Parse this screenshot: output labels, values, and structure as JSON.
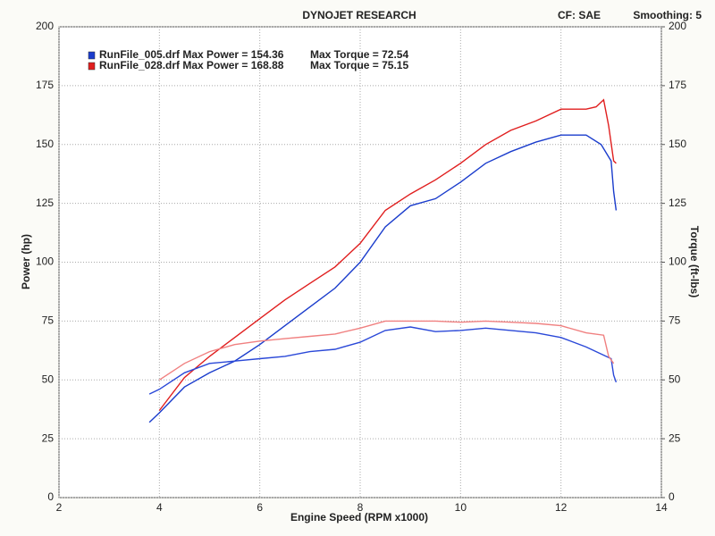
{
  "chart_data": {
    "type": "line",
    "title": "DYNOJET RESEARCH",
    "annotations": [
      "CF: SAE",
      "Smoothing: 5"
    ],
    "x_label": "Engine Speed (RPM x1000)",
    "y_label": "Power (hp)",
    "y2_label": "Torque (ft-lbs)",
    "xlim": [
      2,
      14
    ],
    "xticks": [
      2,
      4,
      6,
      8,
      10,
      12,
      14
    ],
    "ylim": [
      0,
      200
    ],
    "yticks": [
      0,
      25,
      50,
      75,
      100,
      125,
      150,
      175,
      200
    ],
    "y2lim": [
      0,
      200
    ],
    "y2ticks": [
      0,
      25,
      50,
      75,
      100,
      125,
      150,
      175,
      200
    ],
    "grid": true,
    "series": [
      {
        "name": "RunFile_005.drf Max Power = 154.36",
        "color": "#1a3ccc",
        "axis": "y",
        "x": [
          3.8,
          4.0,
          4.5,
          5.0,
          5.5,
          6.0,
          6.5,
          7.0,
          7.5,
          8.0,
          8.5,
          9.0,
          9.5,
          10.0,
          10.5,
          11.0,
          11.5,
          12.0,
          12.5,
          12.8,
          13.0,
          13.05,
          13.1
        ],
        "values": [
          32,
          36,
          47,
          53,
          58,
          65,
          73,
          81,
          89,
          100,
          115,
          124,
          127,
          134,
          142,
          147,
          151,
          154,
          154,
          150,
          143,
          130,
          122
        ]
      },
      {
        "name": "RunFile_028.drf Max Power = 168.88",
        "color": "#e01e1e",
        "axis": "y",
        "x": [
          4.0,
          4.5,
          5.0,
          5.5,
          6.0,
          6.5,
          7.0,
          7.5,
          8.0,
          8.5,
          9.0,
          9.5,
          10.0,
          10.5,
          11.0,
          11.5,
          12.0,
          12.5,
          12.7,
          12.85,
          12.95,
          13.05,
          13.1
        ],
        "values": [
          37,
          51,
          60,
          68,
          76,
          84,
          91,
          98,
          108,
          122,
          129,
          135,
          142,
          150,
          156,
          160,
          165,
          165,
          166,
          169,
          158,
          143,
          142
        ]
      },
      {
        "name": "Max Torque = 72.54",
        "color": "#2a48d8",
        "axis": "y2",
        "x": [
          3.8,
          4.0,
          4.5,
          5.0,
          5.5,
          6.0,
          6.5,
          7.0,
          7.5,
          8.0,
          8.5,
          9.0,
          9.5,
          10.0,
          10.5,
          11.0,
          11.5,
          12.0,
          12.5,
          12.8,
          13.0,
          13.05,
          13.1
        ],
        "values": [
          44,
          46,
          53,
          57,
          58,
          59,
          60,
          62,
          63,
          66,
          71,
          72.5,
          70.5,
          71,
          72,
          71,
          70,
          68,
          64,
          61,
          59,
          52,
          49
        ]
      },
      {
        "name": "Max Torque = 75.15",
        "color": "#f08080",
        "axis": "y2",
        "x": [
          4.0,
          4.5,
          5.0,
          5.5,
          6.0,
          6.5,
          7.0,
          7.5,
          8.0,
          8.5,
          9.0,
          9.5,
          10.0,
          10.5,
          11.0,
          11.5,
          12.0,
          12.5,
          12.85,
          12.95,
          13.05
        ],
        "values": [
          50,
          57,
          62,
          65,
          66.5,
          67.5,
          68.5,
          69.5,
          72,
          75,
          75,
          75,
          74.5,
          75,
          74.5,
          74,
          73,
          70,
          69,
          60,
          57
        ]
      }
    ]
  }
}
